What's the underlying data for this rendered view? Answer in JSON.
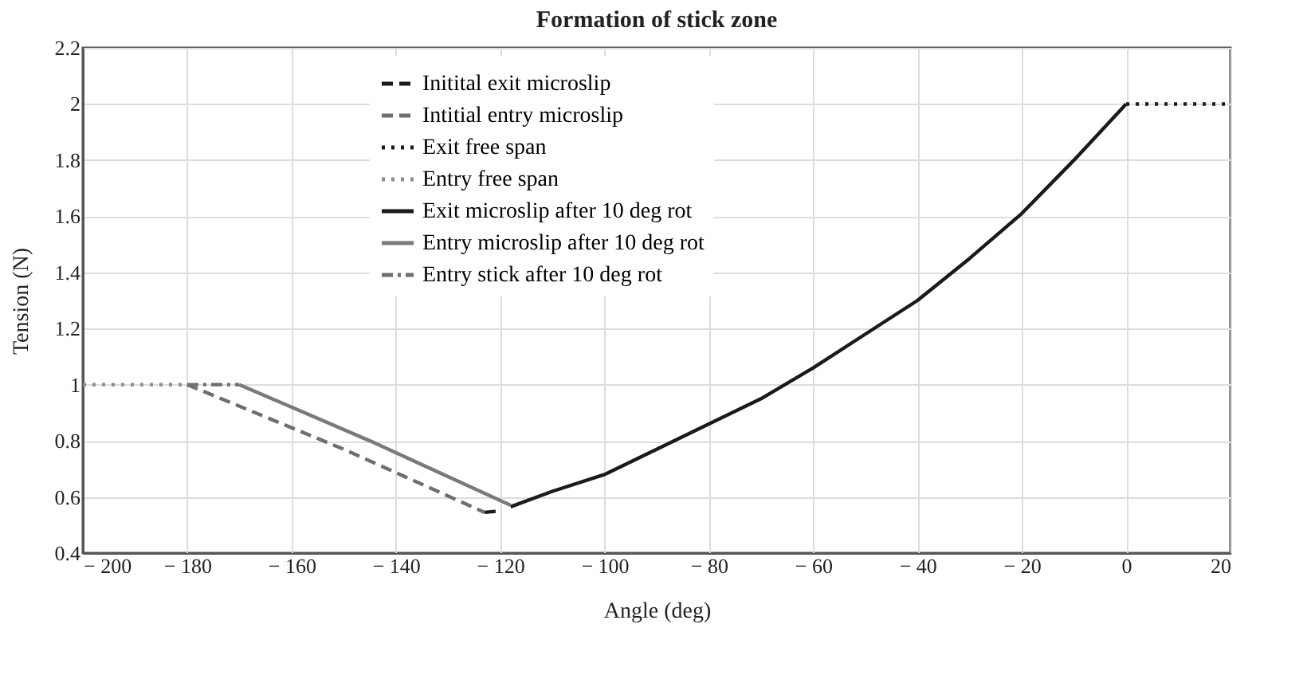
{
  "chart_data": {
    "type": "line",
    "title": "Formation of stick zone",
    "xlabel": "Angle (deg)",
    "ylabel": "Tension (N)",
    "xlim": [
      -200,
      20
    ],
    "xticks": [
      {
        "value": -200,
        "label": "− 200"
      },
      {
        "value": -180,
        "label": "− 180"
      },
      {
        "value": -160,
        "label": "− 160"
      },
      {
        "value": -140,
        "label": "− 140"
      },
      {
        "value": -120,
        "label": "− 120"
      },
      {
        "value": -100,
        "label": "− 100"
      },
      {
        "value": -80,
        "label": "− 80"
      },
      {
        "value": -60,
        "label": "− 60"
      },
      {
        "value": -40,
        "label": "− 40"
      },
      {
        "value": -20,
        "label": "− 20"
      },
      0,
      20
    ],
    "ylim": [
      0.4,
      2.2
    ],
    "yticks": [
      0.4,
      0.6,
      0.8,
      1,
      1.2,
      1.4,
      1.6,
      1.8,
      2,
      2.2
    ],
    "grid": true,
    "legend": "top left",
    "series": [
      {
        "name": "Initital exit microslip",
        "color": "#1a1a1a",
        "line_style": "dashed",
        "x": [
          -123,
          -120
        ],
        "values": [
          0.545,
          0.55
        ]
      },
      {
        "name": "Intitial entry microslip",
        "color": "#6e6e6e",
        "line_style": "dashed",
        "x": [
          -180,
          -150,
          -123
        ],
        "values": [
          1,
          0.77,
          0.545
        ]
      },
      {
        "name": "Exit free span",
        "color": "#1a1a1a",
        "line_style": "dotted",
        "x": [
          0,
          20
        ],
        "values": [
          2,
          2
        ]
      },
      {
        "name": "Entry free span",
        "color": "#8c8c8c",
        "line_style": "dotted",
        "x": [
          -200,
          -180
        ],
        "values": [
          1,
          1
        ]
      },
      {
        "name": "Exit microslip after 10 deg rot",
        "color": "#1a1a1a",
        "line_style": "solid",
        "x": [
          -118,
          -110,
          -100,
          -90,
          -80,
          -70,
          -60,
          -50,
          -40,
          -30,
          -20,
          -10,
          0
        ],
        "values": [
          0.565,
          0.62,
          0.68,
          0.77,
          0.86,
          0.95,
          1.06,
          1.18,
          1.3,
          1.45,
          1.61,
          1.8,
          2
        ]
      },
      {
        "name": "Entry microslip after 10 deg rot",
        "color": "#7a7a7a",
        "line_style": "solid",
        "x": [
          -170,
          -145,
          -118
        ],
        "values": [
          1,
          0.8,
          0.57
        ]
      },
      {
        "name": "Entry stick after 10 deg rot",
        "color": "#6e6e6e",
        "line_style": "dashdot",
        "x": [
          -180,
          -170
        ],
        "values": [
          1,
          1
        ]
      }
    ]
  }
}
